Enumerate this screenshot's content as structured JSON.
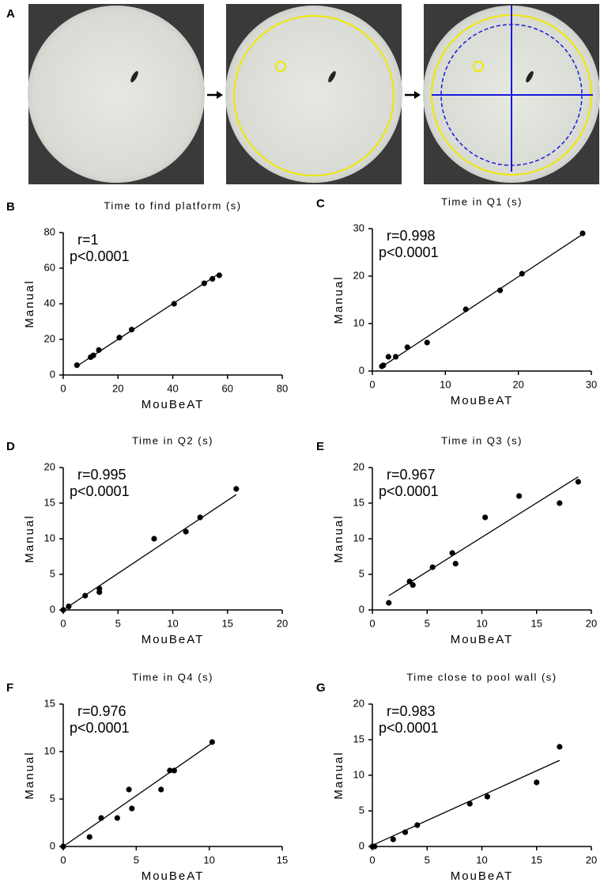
{
  "figure": {
    "panel_label": "A"
  },
  "chart_data": [
    {
      "type": "scatter",
      "panel": "B",
      "title": "Time to find platform (s)",
      "xlabel": "MouBeAT",
      "ylabel": "Manual",
      "annotations": [
        "r=1",
        "p<0.0001"
      ],
      "color": "#000000",
      "xlim": [
        0,
        80
      ],
      "ylim": [
        0,
        80
      ],
      "xticks": [
        0,
        20,
        40,
        60,
        80
      ],
      "yticks": [
        0,
        20,
        40,
        60,
        80
      ],
      "x": [
        5,
        10,
        11,
        13,
        20.5,
        25,
        40.5,
        51.5,
        54.5,
        57
      ],
      "values": [
        5.5,
        10,
        11,
        14,
        21,
        25.5,
        40,
        51.5,
        54,
        56
      ],
      "fit_line": {
        "x": [
          5,
          57
        ],
        "values": [
          5,
          57
        ]
      }
    },
    {
      "type": "scatter",
      "panel": "C",
      "title": "Time in Q1 (s)",
      "xlabel": "MouBeAT",
      "ylabel": "Manual",
      "annotations": [
        "r=0.998",
        "p<0.0001"
      ],
      "color": "#000000",
      "xlim": [
        0,
        30
      ],
      "ylim": [
        0,
        30
      ],
      "xticks": [
        0,
        10,
        20,
        30
      ],
      "yticks": [
        0,
        10,
        20,
        30
      ],
      "x": [
        1.3,
        1.5,
        2.2,
        3.2,
        4.8,
        7.5,
        12.8,
        17.5,
        20.5,
        28.8
      ],
      "values": [
        1,
        1.2,
        3,
        3,
        5,
        6,
        13,
        17,
        20.5,
        29
      ],
      "fit_line": {
        "x": [
          1.2,
          28.8
        ],
        "values": [
          0.8,
          28.8
        ]
      }
    },
    {
      "type": "scatter",
      "panel": "D",
      "title": "Time in Q2 (s)",
      "xlabel": "MouBeAT",
      "ylabel": "Manual",
      "annotations": [
        "r=0.995",
        "p<0.0001"
      ],
      "color": "#000000",
      "xlim": [
        0,
        20
      ],
      "ylim": [
        0,
        20
      ],
      "xticks": [
        0,
        5,
        10,
        15,
        20
      ],
      "yticks": [
        0,
        5,
        10,
        15,
        20
      ],
      "x": [
        0,
        0.5,
        2,
        3.3,
        3.3,
        8.3,
        11.2,
        12.5,
        15.8
      ],
      "values": [
        0,
        0.5,
        2,
        3,
        2.5,
        10,
        11,
        13,
        17
      ],
      "fit_line": {
        "x": [
          0,
          15.8
        ],
        "values": [
          0,
          16.2
        ]
      }
    },
    {
      "type": "scatter",
      "panel": "E",
      "title": "Time in Q3 (s)",
      "xlabel": "MouBeAT",
      "ylabel": "Manual",
      "annotations": [
        "r=0.967",
        "p<0.0001"
      ],
      "color": "#000000",
      "xlim": [
        0,
        20
      ],
      "ylim": [
        0,
        20
      ],
      "xticks": [
        0,
        5,
        10,
        15,
        20
      ],
      "yticks": [
        0,
        5,
        10,
        15,
        20
      ],
      "x": [
        1.5,
        3.4,
        3.7,
        5.5,
        7.3,
        7.6,
        10.3,
        13.4,
        17.1,
        18.8
      ],
      "values": [
        1,
        4,
        3.5,
        6,
        8,
        6.5,
        13,
        16,
        15,
        18
      ],
      "fit_line": {
        "x": [
          1.5,
          18.8
        ],
        "values": [
          2,
          18.7
        ]
      }
    },
    {
      "type": "scatter",
      "panel": "F",
      "title": "Time in Q4 (s)",
      "xlabel": "MouBeAT",
      "ylabel": "Manual",
      "annotations": [
        "r=0.976",
        "p<0.0001"
      ],
      "color": "#000000",
      "xlim": [
        0,
        15
      ],
      "ylim": [
        0,
        15
      ],
      "xticks": [
        0,
        5,
        10,
        15
      ],
      "yticks": [
        0,
        5,
        10,
        15
      ],
      "x": [
        0,
        1.8,
        2.6,
        3.7,
        4.5,
        4.7,
        6.7,
        7.3,
        7.6,
        10.2
      ],
      "values": [
        0,
        1,
        3,
        3,
        6,
        4,
        6,
        8,
        8,
        11
      ],
      "fit_line": {
        "x": [
          0,
          10.2
        ],
        "values": [
          0,
          10.9
        ]
      }
    },
    {
      "type": "scatter",
      "panel": "G",
      "title": "Time close to pool wall (s)",
      "xlabel": "MouBeAT",
      "ylabel": "Manual",
      "annotations": [
        "r=0.983",
        "p<0.0001"
      ],
      "color": "#000000",
      "xlim": [
        0,
        20
      ],
      "ylim": [
        0,
        20
      ],
      "xticks": [
        0,
        5,
        10,
        15,
        20
      ],
      "yticks": [
        0,
        5,
        10,
        15,
        20
      ],
      "x": [
        0,
        0.2,
        1.9,
        3,
        4.1,
        8.9,
        10.5,
        15,
        17.1
      ],
      "values": [
        0,
        0,
        1,
        2,
        3,
        6,
        7,
        9,
        14
      ],
      "fit_line": {
        "x": [
          0.2,
          17.1
        ],
        "values": [
          0.3,
          12.1
        ]
      }
    }
  ]
}
